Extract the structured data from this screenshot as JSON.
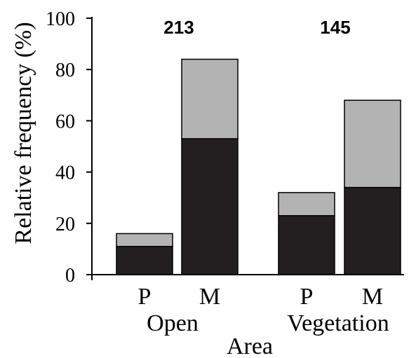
{
  "chart_data": {
    "type": "bar",
    "stacked": true,
    "ylabel": "Relative frequency (%)",
    "xlabel": "Area",
    "ylim": [
      0,
      100
    ],
    "yticks": [
      "0",
      "20",
      "40",
      "60",
      "80",
      "100"
    ],
    "groups": [
      {
        "label": "Open",
        "total_label": "213",
        "categories": [
          "P",
          "M"
        ]
      },
      {
        "label": "Vegetation",
        "total_label": "145",
        "categories": [
          "P",
          "M"
        ]
      }
    ],
    "categories": [
      "Open P",
      "Open M",
      "Vegetation P",
      "Vegetation M"
    ],
    "category_labels": [
      "P",
      "M",
      "P",
      "M"
    ],
    "series": [
      {
        "values": [
          11,
          53,
          23,
          34
        ],
        "color": "#231f20"
      },
      {
        "values": [
          5,
          31,
          9,
          34
        ],
        "color": "#b3b3b3"
      }
    ],
    "grid": false
  },
  "colors": {
    "dark": "#231f20",
    "light": "#b3b3b3",
    "axis": "#000000"
  }
}
